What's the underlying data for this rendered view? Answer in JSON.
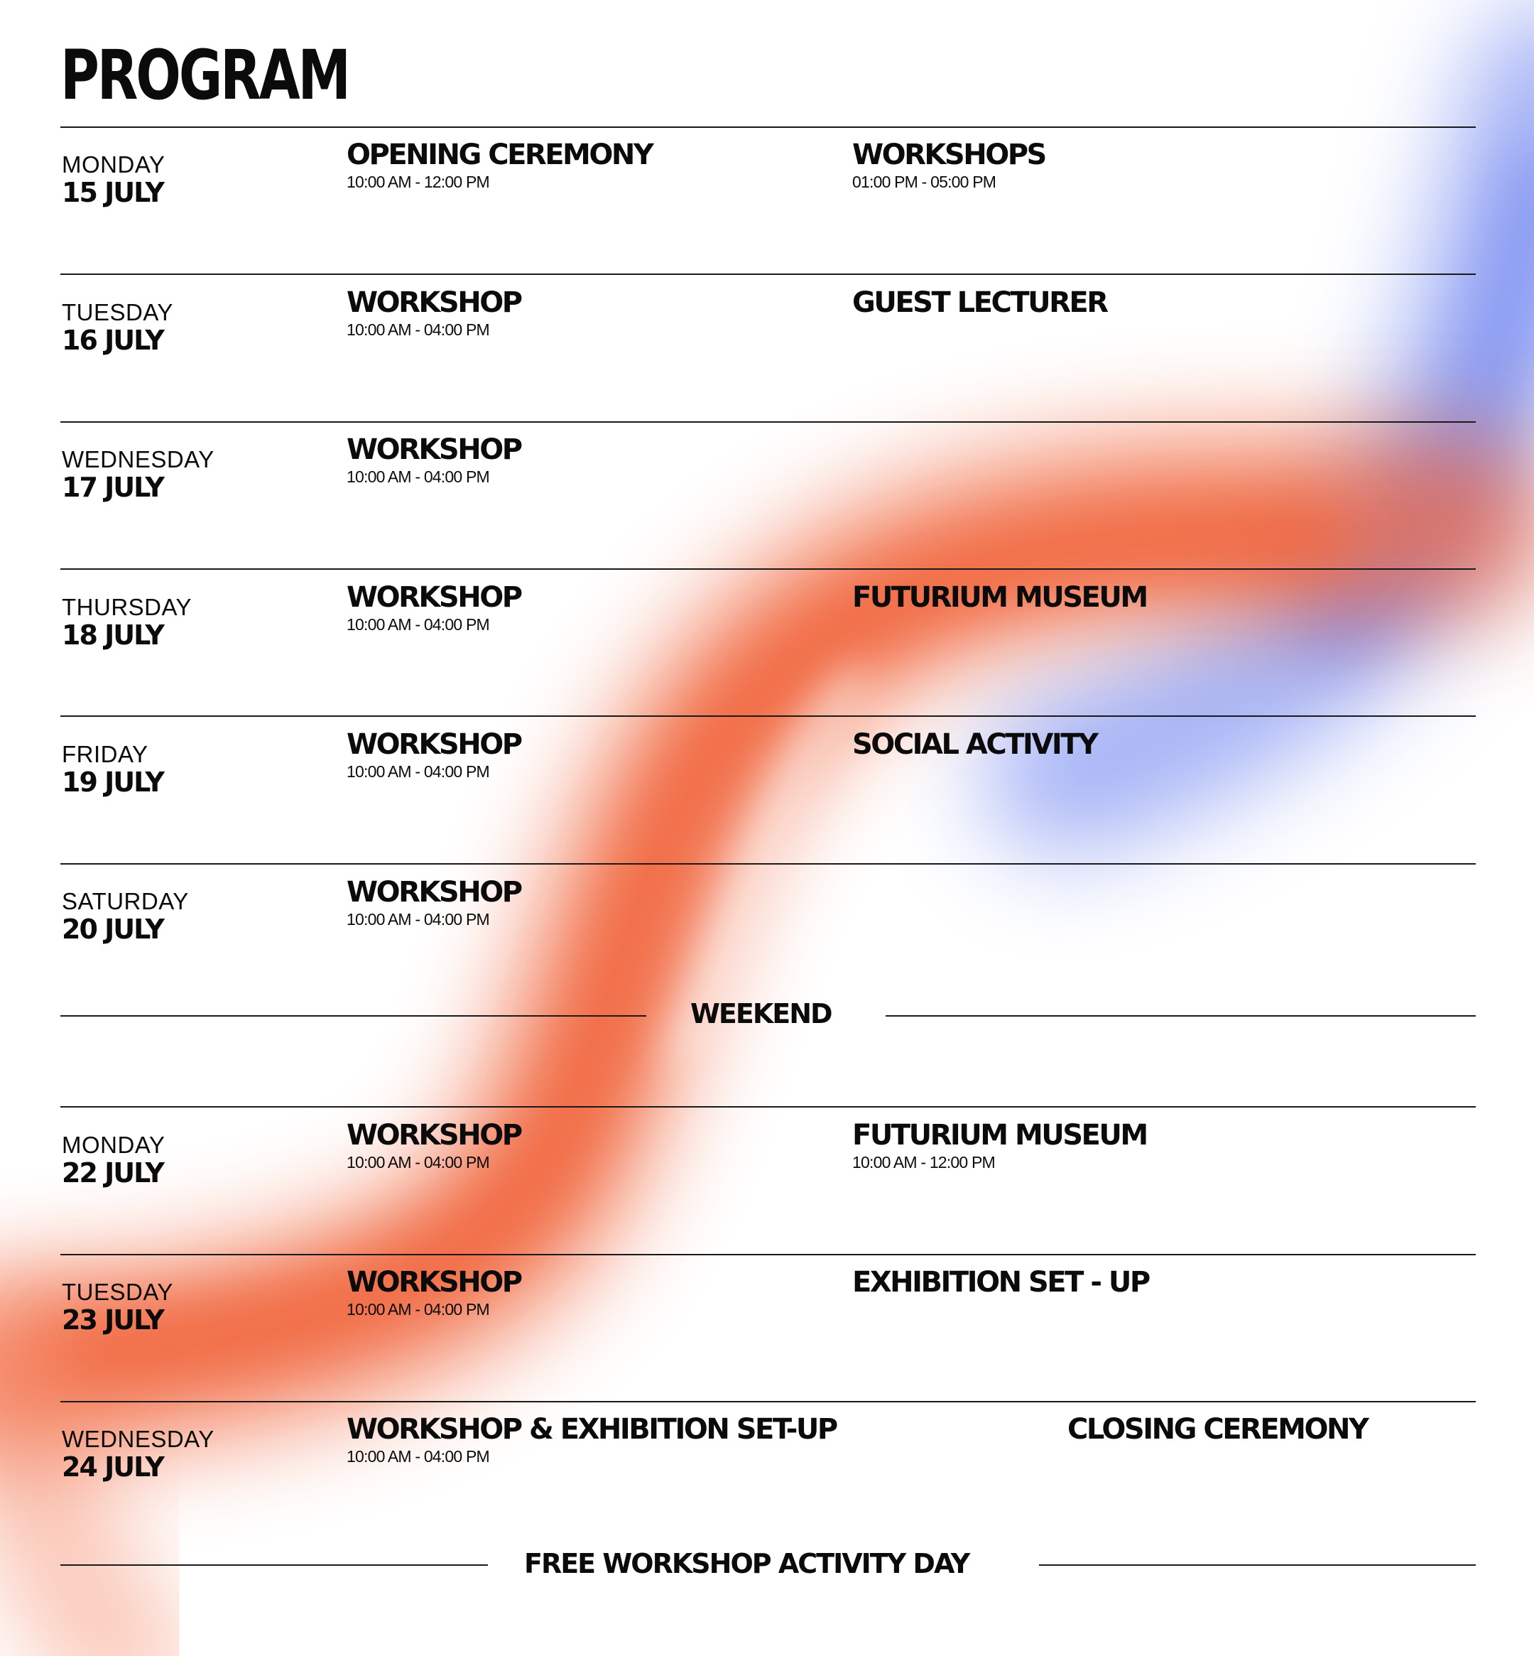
{
  "title": "PROGRAM",
  "colors": {
    "ink": "#0b0b0b",
    "ribbon_orange": "#f0643a",
    "ribbon_blue": "#7e90f0",
    "background": "#ffffff"
  },
  "week1": [
    {
      "day": "MONDAY",
      "date": "15 JULY",
      "events": [
        {
          "title": "OPENING CEREMONY",
          "time": "10:00 AM - 12:00 PM"
        },
        {
          "title": "WORKSHOPS",
          "time": "01:00 PM - 05:00 PM"
        }
      ]
    },
    {
      "day": "TUESDAY",
      "date": "16 JULY",
      "events": [
        {
          "title": "WORKSHOP",
          "time": "10:00 AM - 04:00 PM"
        },
        {
          "title": "GUEST LECTURER",
          "time": ""
        }
      ]
    },
    {
      "day": "WEDNESDAY",
      "date": "17 JULY",
      "events": [
        {
          "title": "WORKSHOP",
          "time": "10:00 AM - 04:00 PM"
        }
      ]
    },
    {
      "day": "THURSDAY",
      "date": "18 JULY",
      "events": [
        {
          "title": "WORKSHOP",
          "time": "10:00 AM - 04:00 PM"
        },
        {
          "title": "FUTURIUM MUSEUM",
          "time": ""
        }
      ]
    },
    {
      "day": "FRIDAY",
      "date": "19 JULY",
      "events": [
        {
          "title": "WORKSHOP",
          "time": "10:00 AM - 04:00 PM"
        },
        {
          "title": "SOCIAL ACTIVITY",
          "time": ""
        }
      ]
    },
    {
      "day": "SATURDAY",
      "date": "20 JULY",
      "events": [
        {
          "title": "WORKSHOP",
          "time": "10:00 AM - 04:00 PM"
        }
      ]
    }
  ],
  "weekend_label": "WEEKEND",
  "week2": [
    {
      "day": "MONDAY",
      "date": "22 JULY",
      "events": [
        {
          "title": "WORKSHOP",
          "time": "10:00 AM - 04:00 PM"
        },
        {
          "title": "FUTURIUM MUSEUM",
          "time": "10:00 AM - 12:00 PM"
        }
      ]
    },
    {
      "day": "TUESDAY",
      "date": "23 JULY",
      "events": [
        {
          "title": "WORKSHOP",
          "time": "10:00 AM - 04:00 PM"
        },
        {
          "title": "EXHIBITION SET - UP",
          "time": ""
        }
      ]
    },
    {
      "day": "WEDNESDAY",
      "date": "24 JULY",
      "events": [
        {
          "title": "WORKSHOP & EXHIBITION SET-UP",
          "time": "10:00 AM - 04:00 PM"
        },
        {
          "title": "CLOSING CEREMONY",
          "time": ""
        }
      ]
    }
  ],
  "final_label": "FREE WORKSHOP ACTIVITY DAY"
}
